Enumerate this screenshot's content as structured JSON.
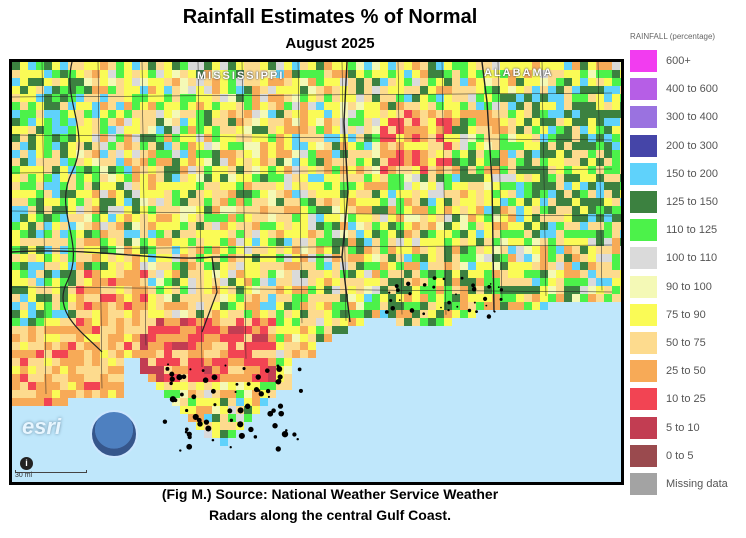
{
  "title": "Rainfall Estimates % of Normal",
  "subtitle": "August 2025",
  "caption": {
    "line1": "(Fig M.) Source: National Weather Service Weather",
    "line2": "Radars along the central Gulf Coast."
  },
  "map": {
    "state_labels": [
      "MISSISSIPPI",
      "ALABAMA"
    ],
    "attribution": "esri",
    "scale_label": "30 mi",
    "colors": {
      "water": "#bfe7fb",
      "coast": "#000000"
    }
  },
  "legend": {
    "title": "RAINFALL (percentage)",
    "items": [
      {
        "label": "600+",
        "color": "#f23cf0"
      },
      {
        "label": "400 to 600",
        "color": "#b65ee6"
      },
      {
        "label": "300 to 400",
        "color": "#9a72e0"
      },
      {
        "label": "200 to 300",
        "color": "#4545a8"
      },
      {
        "label": "150 to 200",
        "color": "#5fd2fb"
      },
      {
        "label": "125 to 150",
        "color": "#3c8140"
      },
      {
        "label": "110 to 125",
        "color": "#4cf24a"
      },
      {
        "label": "100 to 110",
        "color": "#dadada"
      },
      {
        "label": "90 to 100",
        "color": "#f4f9b6"
      },
      {
        "label": "75 to 90",
        "color": "#fafb56"
      },
      {
        "label": "50 to 75",
        "color": "#fddb8e"
      },
      {
        "label": "25 to 50",
        "color": "#f7aa57"
      },
      {
        "label": "10 to 25",
        "color": "#f24453"
      },
      {
        "label": "5 to 10",
        "color": "#c23d52"
      },
      {
        "label": "0 to 5",
        "color": "#9a4a4e"
      },
      {
        "label": "Missing data",
        "color": "#a3a3a3"
      }
    ]
  }
}
